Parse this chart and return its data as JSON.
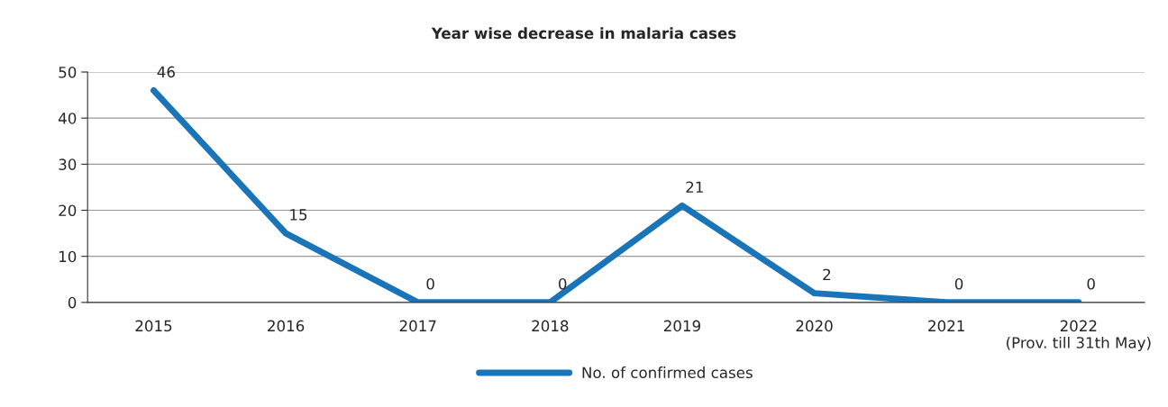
{
  "chart_data": {
    "type": "line",
    "title": "Year wise decrease in malaria cases",
    "categories": [
      "2015",
      "2016",
      "2017",
      "2018",
      "2019",
      "2020",
      "2021",
      "2022\n(Prov. till 31th May)"
    ],
    "series": [
      {
        "name": "No. of confirmed cases",
        "color": "#1a75b8",
        "values": [
          46,
          15,
          0,
          0,
          21,
          2,
          0,
          0
        ]
      }
    ],
    "ylim": [
      0,
      50
    ],
    "yticks": [
      0,
      10,
      20,
      30,
      40,
      50
    ],
    "grid": "y",
    "legend": "bottom",
    "data_labels": true,
    "marker": "none",
    "line_style": "solid"
  }
}
